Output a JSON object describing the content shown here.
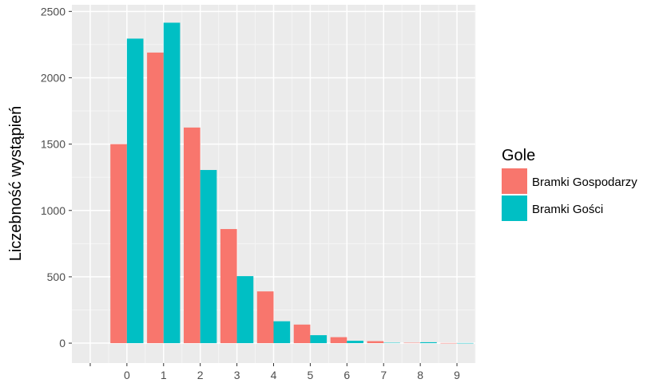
{
  "chart_data": {
    "type": "bar",
    "ylabel": "Liczebność wystąpień",
    "xlabel": "",
    "xlim": [
      -1.5,
      9.5
    ],
    "ylim": [
      -150,
      2550
    ],
    "x_ticks": [
      "0",
      "1",
      "2",
      "3",
      "4",
      "5",
      "6",
      "7",
      "8",
      "9"
    ],
    "y_ticks": [
      0,
      500,
      1000,
      1500,
      2000,
      2500
    ],
    "legend": {
      "title": "Gole",
      "position": "right"
    },
    "grid": true,
    "series": [
      {
        "name": "Bramki Gospodarzy",
        "color": "#F8766D",
        "x": [
          0,
          1,
          2,
          3,
          4,
          5,
          6,
          7,
          8,
          9
        ],
        "values": [
          1500,
          2190,
          1625,
          860,
          390,
          140,
          45,
          15,
          3,
          1
        ]
      },
      {
        "name": "Bramki Gości",
        "color": "#00BFC4",
        "x": [
          0,
          1,
          2,
          3,
          4,
          5,
          6,
          7,
          8,
          9
        ],
        "values": [
          2295,
          2415,
          1305,
          505,
          165,
          60,
          18,
          3,
          7,
          1
        ]
      }
    ]
  }
}
